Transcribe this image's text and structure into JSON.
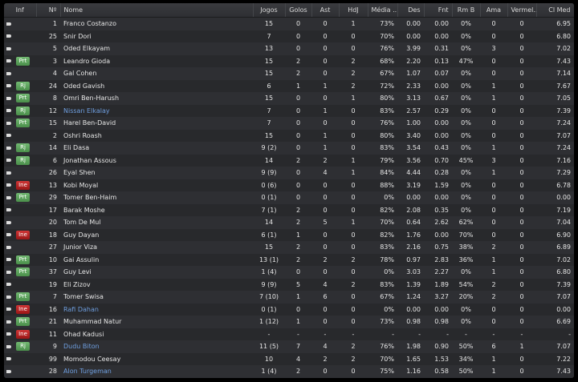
{
  "headers": [
    "Inf",
    "Nº",
    "Nome",
    "Jogos",
    "Golos",
    "Ast",
    "HdJ",
    "Média ..",
    "Des",
    "Fnt",
    "Rm B",
    "Ama",
    "Vermel..",
    "Cl Med"
  ],
  "colors": {
    "badge_green": "#5aa55a",
    "badge_red": "#b82020",
    "link": "#6f9fe0",
    "background": "#2b2c2f"
  },
  "rows": [
    {
      "inf": "",
      "no": "1",
      "name": "Franco Costanzo",
      "link": false,
      "stats": [
        "15",
        "0",
        "0",
        "1",
        "73%",
        "0.00",
        "0.00",
        "0%",
        "0",
        "0",
        "6.95"
      ]
    },
    {
      "inf": "",
      "no": "25",
      "name": "Snir Dori",
      "link": false,
      "stats": [
        "7",
        "0",
        "0",
        "0",
        "70%",
        "0.00",
        "0.00",
        "0%",
        "0",
        "0",
        "6.80"
      ]
    },
    {
      "inf": "",
      "no": "5",
      "name": "Oded Elkayam",
      "link": false,
      "stats": [
        "13",
        "0",
        "0",
        "0",
        "76%",
        "3.99",
        "0.31",
        "0%",
        "3",
        "0",
        "7.02"
      ]
    },
    {
      "inf": "Prt",
      "no": "3",
      "name": "Leandro Gioda",
      "link": false,
      "stats": [
        "15",
        "2",
        "0",
        "2",
        "68%",
        "2.20",
        "0.13",
        "47%",
        "0",
        "0",
        "7.43"
      ]
    },
    {
      "inf": "",
      "no": "4",
      "name": "Gal Cohen",
      "link": false,
      "stats": [
        "15",
        "2",
        "0",
        "2",
        "67%",
        "1.07",
        "0.07",
        "0%",
        "0",
        "0",
        "7.14"
      ]
    },
    {
      "inf": "Rj",
      "no": "24",
      "name": "Oded Gavish",
      "link": false,
      "stats": [
        "6",
        "1",
        "1",
        "2",
        "72%",
        "2.33",
        "0.00",
        "0%",
        "1",
        "0",
        "7.67"
      ]
    },
    {
      "inf": "Prt",
      "no": "8",
      "name": "Omri Ben-Harush",
      "link": false,
      "stats": [
        "15",
        "0",
        "0",
        "1",
        "80%",
        "3.13",
        "0.67",
        "0%",
        "1",
        "0",
        "7.05"
      ]
    },
    {
      "inf": "Rj",
      "no": "12",
      "name": "Nissan Elkalay",
      "link": true,
      "stats": [
        "7",
        "0",
        "1",
        "0",
        "83%",
        "2.57",
        "0.29",
        "0%",
        "0",
        "0",
        "7.39"
      ]
    },
    {
      "inf": "Prt",
      "no": "15",
      "name": "Harel Ben-David",
      "link": false,
      "stats": [
        "7",
        "0",
        "0",
        "0",
        "76%",
        "1.00",
        "0.00",
        "0%",
        "0",
        "0",
        "7.24"
      ]
    },
    {
      "inf": "",
      "no": "2",
      "name": "Oshri Roash",
      "link": false,
      "stats": [
        "15",
        "0",
        "1",
        "0",
        "80%",
        "3.40",
        "0.00",
        "0%",
        "0",
        "0",
        "7.07"
      ]
    },
    {
      "inf": "Rj",
      "no": "14",
      "name": "Eli Dasa",
      "link": false,
      "stats": [
        "9 (2)",
        "0",
        "1",
        "0",
        "83%",
        "3.54",
        "0.43",
        "0%",
        "1",
        "0",
        "7.24"
      ]
    },
    {
      "inf": "Rj",
      "no": "6",
      "name": "Jonathan Assous",
      "link": false,
      "stats": [
        "14",
        "2",
        "2",
        "1",
        "79%",
        "3.56",
        "0.70",
        "45%",
        "3",
        "0",
        "7.16"
      ]
    },
    {
      "inf": "",
      "no": "26",
      "name": "Eyal Shen",
      "link": false,
      "stats": [
        "9 (9)",
        "0",
        "4",
        "1",
        "84%",
        "4.44",
        "0.28",
        "0%",
        "1",
        "0",
        "7.29"
      ]
    },
    {
      "inf": "Ine",
      "no": "13",
      "name": "Kobi Moyal",
      "link": false,
      "stats": [
        "0 (6)",
        "0",
        "0",
        "0",
        "88%",
        "3.19",
        "1.59",
        "0%",
        "0",
        "0",
        "6.78"
      ]
    },
    {
      "inf": "Prt",
      "no": "29",
      "name": "Tomer Ben-Haim",
      "link": false,
      "stats": [
        "0 (1)",
        "0",
        "0",
        "0",
        "0%",
        "0.00",
        "0.00",
        "0%",
        "0",
        "0",
        "0.00"
      ]
    },
    {
      "inf": "",
      "no": "17",
      "name": "Barak Moshe",
      "link": false,
      "stats": [
        "7 (1)",
        "2",
        "0",
        "0",
        "82%",
        "2.08",
        "0.35",
        "0%",
        "0",
        "0",
        "7.19"
      ]
    },
    {
      "inf": "",
      "no": "20",
      "name": "Tom De Mul",
      "link": false,
      "stats": [
        "14",
        "2",
        "5",
        "1",
        "70%",
        "0.64",
        "2.62",
        "62%",
        "0",
        "0",
        "7.04"
      ]
    },
    {
      "inf": "Ine",
      "no": "18",
      "name": "Guy Dayan",
      "link": false,
      "stats": [
        "6 (1)",
        "1",
        "0",
        "0",
        "82%",
        "1.76",
        "0.00",
        "70%",
        "0",
        "0",
        "6.90"
      ]
    },
    {
      "inf": "",
      "no": "27",
      "name": "Junior Viza",
      "link": false,
      "stats": [
        "15",
        "2",
        "0",
        "0",
        "83%",
        "2.16",
        "0.75",
        "38%",
        "2",
        "0",
        "6.89"
      ]
    },
    {
      "inf": "Prt",
      "no": "10",
      "name": "Gai Assulin",
      "link": false,
      "stats": [
        "13 (1)",
        "2",
        "2",
        "2",
        "78%",
        "0.97",
        "2.83",
        "36%",
        "1",
        "0",
        "7.02"
      ]
    },
    {
      "inf": "Prt",
      "no": "37",
      "name": "Guy Levi",
      "link": false,
      "stats": [
        "1 (4)",
        "0",
        "0",
        "0",
        "0%",
        "3.03",
        "2.27",
        "0%",
        "1",
        "0",
        "6.80"
      ]
    },
    {
      "inf": "",
      "no": "19",
      "name": "Eli Zizov",
      "link": false,
      "stats": [
        "9 (9)",
        "5",
        "4",
        "2",
        "83%",
        "1.39",
        "1.89",
        "54%",
        "2",
        "0",
        "7.39"
      ]
    },
    {
      "inf": "Prt",
      "no": "7",
      "name": "Tomer Swisa",
      "link": false,
      "stats": [
        "7 (10)",
        "1",
        "6",
        "0",
        "67%",
        "1.24",
        "3.27",
        "20%",
        "2",
        "0",
        "7.07"
      ]
    },
    {
      "inf": "Ine",
      "no": "16",
      "name": "Rafi Dahan",
      "link": true,
      "stats": [
        "0 (1)",
        "0",
        "0",
        "0",
        "0%",
        "0.00",
        "0.00",
        "0%",
        "0",
        "0",
        "0.00"
      ]
    },
    {
      "inf": "Prt",
      "no": "21",
      "name": "Muhammad Natur",
      "link": false,
      "stats": [
        "1 (12)",
        "1",
        "0",
        "0",
        "73%",
        "0.98",
        "0.98",
        "0%",
        "0",
        "0",
        "6.69"
      ]
    },
    {
      "inf": "Ine",
      "no": "11",
      "name": "Ohad Kadusi",
      "link": false,
      "stats": [
        "-",
        "-",
        "-",
        "-",
        "-",
        "-",
        "-",
        "-",
        "-",
        "-",
        "-"
      ]
    },
    {
      "inf": "Rj",
      "no": "9",
      "name": "Dudu Biton",
      "link": true,
      "stats": [
        "11 (5)",
        "7",
        "4",
        "2",
        "76%",
        "1.98",
        "0.90",
        "50%",
        "6",
        "1",
        "7.07"
      ]
    },
    {
      "inf": "",
      "no": "99",
      "name": "Momodou Ceesay",
      "link": false,
      "stats": [
        "10",
        "4",
        "2",
        "2",
        "70%",
        "1.65",
        "1.53",
        "34%",
        "1",
        "0",
        "7.22"
      ]
    },
    {
      "inf": "",
      "no": "28",
      "name": "Alon Turgeman",
      "link": true,
      "stats": [
        "1 (4)",
        "2",
        "0",
        "0",
        "75%",
        "1.16",
        "0.58",
        "50%",
        "1",
        "0",
        "7.43"
      ]
    }
  ]
}
